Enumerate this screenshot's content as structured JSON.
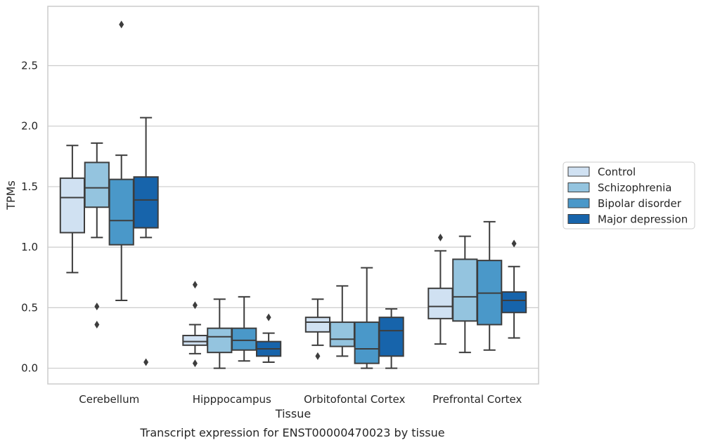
{
  "chart_data": {
    "type": "box",
    "xlabel": "Tissue",
    "ylabel": "TPMs",
    "caption": "Transcript expression for ENST00000470023 by tissue",
    "ylim": [
      -0.13,
      2.99
    ],
    "yticks": [
      "0.0",
      "0.5",
      "1.0",
      "1.5",
      "2.0",
      "2.5"
    ],
    "grid": true,
    "legend_placement": "right",
    "categories": [
      "Cerebellum",
      "Hipppocampus",
      "Orbitofontal Cortex",
      "Prefrontal Cortex"
    ],
    "series": [
      {
        "name": "Control",
        "color": "#d0e1f2",
        "boxes": [
          {
            "whislo": 0.79,
            "q1": 1.12,
            "med": 1.41,
            "q3": 1.57,
            "whishi": 1.84,
            "fliers": []
          },
          {
            "whislo": 0.12,
            "q1": 0.19,
            "med": 0.22,
            "q3": 0.27,
            "whishi": 0.36,
            "fliers": [
              0.69,
              0.52,
              0.04
            ]
          },
          {
            "whislo": 0.19,
            "q1": 0.3,
            "med": 0.38,
            "q3": 0.42,
            "whishi": 0.57,
            "fliers": [
              0.1
            ]
          },
          {
            "whislo": 0.2,
            "q1": 0.41,
            "med": 0.51,
            "q3": 0.66,
            "whishi": 0.97,
            "fliers": [
              1.08
            ]
          }
        ]
      },
      {
        "name": "Schizophrenia",
        "color": "#94c4df",
        "boxes": [
          {
            "whislo": 1.08,
            "q1": 1.33,
            "med": 1.49,
            "q3": 1.7,
            "whishi": 1.86,
            "fliers": [
              0.51,
              0.36
            ]
          },
          {
            "whislo": 0.0,
            "q1": 0.13,
            "med": 0.26,
            "q3": 0.33,
            "whishi": 0.57,
            "fliers": []
          },
          {
            "whislo": 0.1,
            "q1": 0.18,
            "med": 0.24,
            "q3": 0.38,
            "whishi": 0.68,
            "fliers": []
          },
          {
            "whislo": 0.13,
            "q1": 0.39,
            "med": 0.59,
            "q3": 0.9,
            "whishi": 1.09,
            "fliers": []
          }
        ]
      },
      {
        "name": "Bipolar disorder",
        "color": "#4a98c9",
        "boxes": [
          {
            "whislo": 0.56,
            "q1": 1.02,
            "med": 1.22,
            "q3": 1.56,
            "whishi": 1.76,
            "fliers": [
              2.84
            ]
          },
          {
            "whislo": 0.06,
            "q1": 0.15,
            "med": 0.23,
            "q3": 0.33,
            "whishi": 0.59,
            "fliers": []
          },
          {
            "whislo": 0.0,
            "q1": 0.04,
            "med": 0.16,
            "q3": 0.38,
            "whishi": 0.83,
            "fliers": []
          },
          {
            "whislo": 0.15,
            "q1": 0.36,
            "med": 0.62,
            "q3": 0.89,
            "whishi": 1.21,
            "fliers": []
          }
        ]
      },
      {
        "name": "Major depression",
        "color": "#1764ab",
        "boxes": [
          {
            "whislo": 1.08,
            "q1": 1.16,
            "med": 1.39,
            "q3": 1.58,
            "whishi": 2.07,
            "fliers": [
              0.05
            ]
          },
          {
            "whislo": 0.05,
            "q1": 0.1,
            "med": 0.16,
            "q3": 0.22,
            "whishi": 0.29,
            "fliers": [
              0.42
            ]
          },
          {
            "whislo": 0.0,
            "q1": 0.1,
            "med": 0.31,
            "q3": 0.42,
            "whishi": 0.49,
            "fliers": []
          },
          {
            "whislo": 0.25,
            "q1": 0.46,
            "med": 0.56,
            "q3": 0.63,
            "whishi": 0.84,
            "fliers": [
              1.03
            ]
          }
        ]
      }
    ]
  }
}
